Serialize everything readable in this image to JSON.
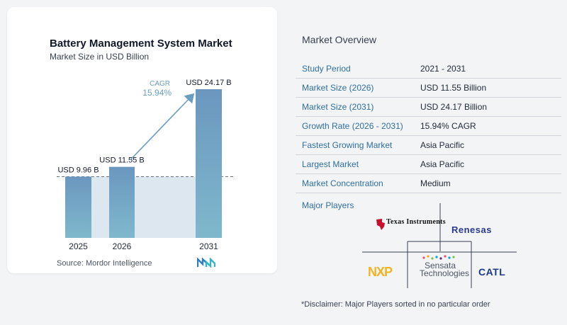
{
  "chart_data": {
    "type": "bar",
    "title": "Battery Management System Market",
    "subtitle": "Market Size in USD Billion",
    "categories": [
      "2025",
      "2026",
      "2031"
    ],
    "values": [
      9.96,
      11.55,
      24.17
    ],
    "data_labels": [
      "USD 9.96 B",
      "USD 11.55 B",
      "USD 24.17 B"
    ],
    "cagr_label": "CAGR",
    "cagr_value": "15.94%",
    "bar_colors": [
      "#6f9fc3",
      "#6f9fc3",
      "#6aa3c3"
    ]
  },
  "source": "Source:  Mordor Intelligence",
  "overview": {
    "title": "Market Overview",
    "rows": [
      {
        "label": "Study Period",
        "value": "2021 - 2031"
      },
      {
        "label": "Market Size (2026)",
        "value": "USD 11.55 Billion"
      },
      {
        "label": "Market Size (2031)",
        "value": "USD 24.17 Billion"
      },
      {
        "label": "Growth Rate (2026 - 2031)",
        "value": "15.94% CAGR"
      },
      {
        "label": "Fastest Growing Market",
        "value": "Asia Pacific"
      },
      {
        "label": "Largest Market",
        "value": "Asia Pacific"
      },
      {
        "label": "Market Concentration",
        "value": "Medium"
      }
    ]
  },
  "players": {
    "title": "Major Players",
    "logos": [
      "Texas Instruments",
      "Renesas",
      "NXP",
      "Sensata Technologies",
      "CATL"
    ]
  },
  "disclaimer": "*Disclaimer: Major Players sorted in no particular order",
  "colors": {
    "accent": "#2f6f9e",
    "bar": "#6f9fc3",
    "arrow": "#6b9dc0",
    "projection": "#dde7f0"
  }
}
